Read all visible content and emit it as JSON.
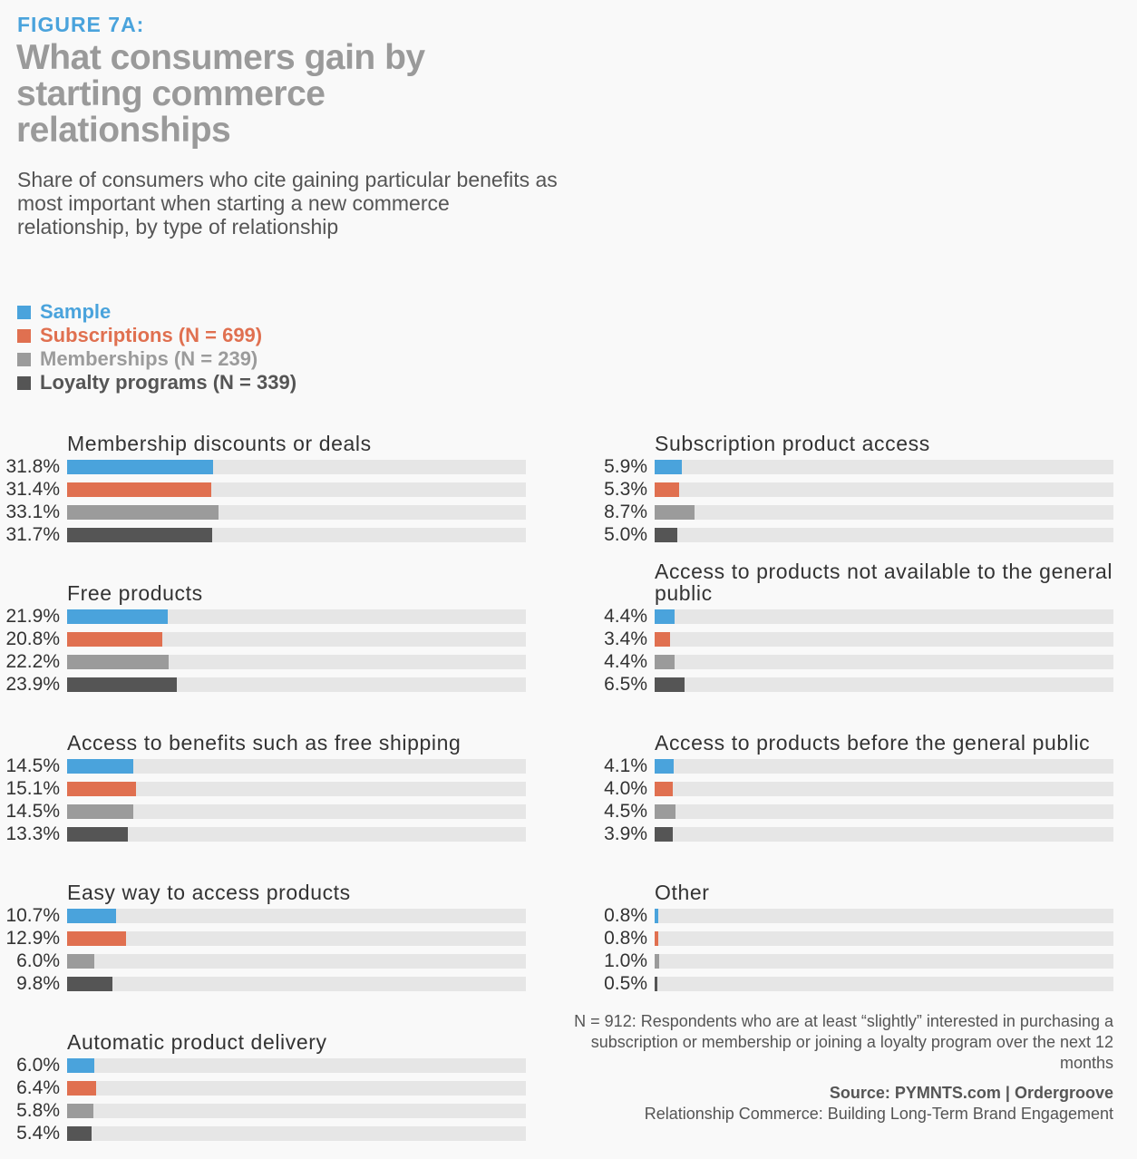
{
  "figure_label": "FIGURE 7A:",
  "chart_data": {
    "type": "bar",
    "title": "What consumers gain by starting commerce relationships",
    "subtitle": "Share of consumers who cite gaining particular benefits as most important when starting a new commerce relationship, by type of relationship",
    "xlim": [
      0,
      100
    ],
    "series": [
      {
        "name": "Sample",
        "color": "#4aa3dc"
      },
      {
        "name": "Subscriptions (N = 699)",
        "color": "#e07050"
      },
      {
        "name": "Memberships (N = 239)",
        "color": "#9b9b9b"
      },
      {
        "name": "Loyalty programs (N = 339)",
        "color": "#555555"
      }
    ],
    "groups": [
      {
        "category": "Membership discounts or deals",
        "values": [
          31.8,
          31.4,
          33.1,
          31.7
        ],
        "labels": [
          "31.8%",
          "31.4%",
          "33.1%",
          "31.7%"
        ]
      },
      {
        "category": "Free products",
        "values": [
          21.9,
          20.8,
          22.2,
          23.9
        ],
        "labels": [
          "21.9%",
          "20.8%",
          "22.2%",
          "23.9%"
        ]
      },
      {
        "category": "Access to benefits such as free shipping",
        "values": [
          14.5,
          15.1,
          14.5,
          13.3
        ],
        "labels": [
          "14.5%",
          "15.1%",
          "14.5%",
          "13.3%"
        ]
      },
      {
        "category": "Easy way to access products",
        "values": [
          10.7,
          12.9,
          6.0,
          9.8
        ],
        "labels": [
          "10.7%",
          "12.9%",
          "6.0%",
          "9.8%"
        ]
      },
      {
        "category": "Automatic product delivery",
        "values": [
          6.0,
          6.4,
          5.8,
          5.4
        ],
        "labels": [
          "6.0%",
          "6.4%",
          "5.8%",
          "5.4%"
        ]
      },
      {
        "category": "Subscription product access",
        "values": [
          5.9,
          5.3,
          8.7,
          5.0
        ],
        "labels": [
          "5.9%",
          "5.3%",
          "8.7%",
          "5.0%"
        ]
      },
      {
        "category": "Access to products not available to the general public",
        "values": [
          4.4,
          3.4,
          4.4,
          6.5
        ],
        "labels": [
          "4.4%",
          "3.4%",
          "4.4%",
          "6.5%"
        ]
      },
      {
        "category": "Access to products before the general public",
        "values": [
          4.1,
          4.0,
          4.5,
          3.9
        ],
        "labels": [
          "4.1%",
          "4.0%",
          "4.5%",
          "3.9%"
        ]
      },
      {
        "category": "Other",
        "values": [
          0.8,
          0.8,
          1.0,
          0.5
        ],
        "labels": [
          "0.8%",
          "0.8%",
          "1.0%",
          "0.5%"
        ]
      }
    ]
  },
  "footnote": "N = 912: Respondents who are at least “slightly” interested in purchasing a subscription or membership or joining a loyalty program over the next 12 months",
  "source_label": "Source: PYMNTS.com  |  Ordergroove",
  "source_title": "Relationship Commerce: Building Long-Term Brand Engagement"
}
